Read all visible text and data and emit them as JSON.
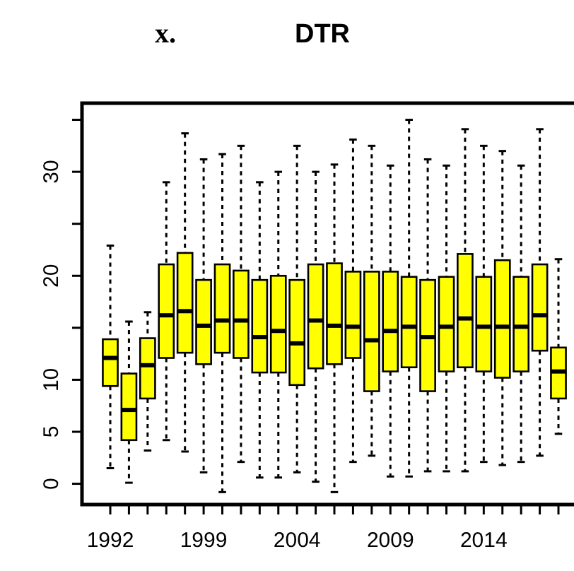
{
  "chart_data": {
    "type": "box",
    "title": "DTR",
    "annotations": [
      "x."
    ],
    "categories": [
      "1992",
      null,
      null,
      null,
      null,
      "1999",
      null,
      null,
      null,
      null,
      "2004",
      null,
      null,
      null,
      null,
      "2009",
      null,
      null,
      null,
      null,
      "2014",
      null,
      null,
      null,
      null
    ],
    "color": "#ffff00",
    "ylim": [
      -2,
      36.6
    ],
    "yticks": [
      0,
      5,
      10,
      {
        "value": 15,
        "label": null
      },
      20,
      {
        "value": 25,
        "label": null
      },
      30,
      {
        "value": 35,
        "label": null
      }
    ],
    "boxes": [
      {
        "low": 1.5,
        "q1": 9.4,
        "median": 12.1,
        "q3": 13.9,
        "high": 22.9
      },
      {
        "low": 0.1,
        "q1": 4.2,
        "median": 7.1,
        "q3": 10.6,
        "high": 15.6
      },
      {
        "low": 3.2,
        "q1": 8.2,
        "median": 11.4,
        "q3": 14.0,
        "high": 16.5
      },
      {
        "low": 4.2,
        "q1": 12.1,
        "median": 16.2,
        "q3": 21.1,
        "high": 29.0
      },
      {
        "low": 3.1,
        "q1": 12.6,
        "median": 16.6,
        "q3": 22.2,
        "high": 33.7
      },
      {
        "low": 1.1,
        "q1": 11.5,
        "median": 15.2,
        "q3": 19.6,
        "high": 31.2
      },
      {
        "low": -0.8,
        "q1": 12.6,
        "median": 15.7,
        "q3": 21.1,
        "high": 31.7
      },
      {
        "low": 2.1,
        "q1": 12.1,
        "median": 15.7,
        "q3": 20.5,
        "high": 32.5
      },
      {
        "low": 0.6,
        "q1": 10.7,
        "median": 14.1,
        "q3": 19.6,
        "high": 29.0
      },
      {
        "low": 0.6,
        "q1": 10.7,
        "median": 14.7,
        "q3": 20.0,
        "high": 30.0
      },
      {
        "low": 1.1,
        "q1": 9.5,
        "median": 13.5,
        "q3": 19.6,
        "high": 32.5
      },
      {
        "low": 0.2,
        "q1": 11.1,
        "median": 15.7,
        "q3": 21.1,
        "high": 30.0
      },
      {
        "low": -0.8,
        "q1": 11.5,
        "median": 15.2,
        "q3": 21.2,
        "high": 30.7
      },
      {
        "low": 2.1,
        "q1": 12.1,
        "median": 15.1,
        "q3": 20.4,
        "high": 33.1
      },
      {
        "low": 2.7,
        "q1": 8.9,
        "median": 13.8,
        "q3": 20.4,
        "high": 32.5
      },
      {
        "low": 0.7,
        "q1": 10.8,
        "median": 14.7,
        "q3": 20.4,
        "high": 30.6
      },
      {
        "low": 0.7,
        "q1": 11.2,
        "median": 15.1,
        "q3": 19.9,
        "high": 35.0
      },
      {
        "low": 1.2,
        "q1": 8.9,
        "median": 14.1,
        "q3": 19.6,
        "high": 31.2
      },
      {
        "low": 1.2,
        "q1": 10.8,
        "median": 15.1,
        "q3": 19.9,
        "high": 30.6
      },
      {
        "low": 1.2,
        "q1": 11.2,
        "median": 15.9,
        "q3": 22.1,
        "high": 34.1
      },
      {
        "low": 2.1,
        "q1": 10.8,
        "median": 15.1,
        "q3": 19.9,
        "high": 32.5
      },
      {
        "low": 1.8,
        "q1": 10.2,
        "median": 15.1,
        "q3": 21.5,
        "high": 32.0
      },
      {
        "low": 2.1,
        "q1": 10.8,
        "median": 15.1,
        "q3": 19.9,
        "high": 30.6
      },
      {
        "low": 2.7,
        "q1": 12.8,
        "median": 16.2,
        "q3": 21.1,
        "high": 34.1
      },
      {
        "low": 4.8,
        "q1": 8.2,
        "median": 10.8,
        "q3": 13.1,
        "high": 21.6
      }
    ]
  }
}
